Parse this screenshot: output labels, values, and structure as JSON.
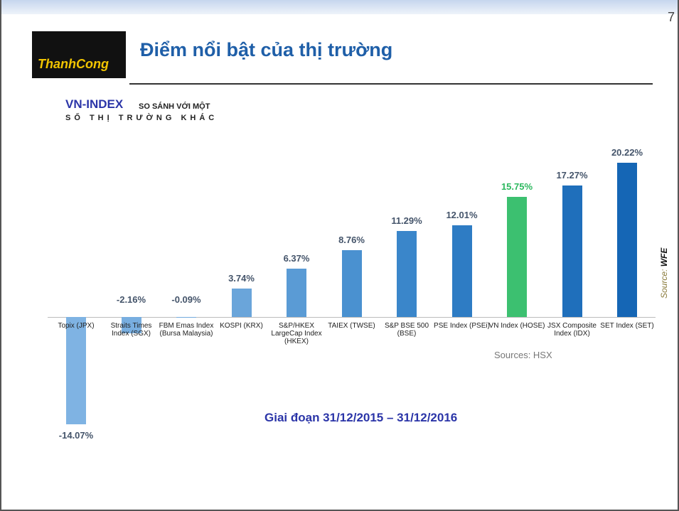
{
  "page_number": "7",
  "logo": "ThanhCong",
  "title": "Điểm nổi bật của thị trường",
  "subtitle_1": "VN-INDEX",
  "subtitle_2": "SO SÁNH VỚI MỘT",
  "subtitle_3": "SỐ THỊ TRƯỜNG KHÁC",
  "chart_data": {
    "type": "bar",
    "categories": [
      "Topix (JPX)",
      "Straits Times Index (SGX)",
      "FBM Emas Index (Bursa Malaysia)",
      "KOSPI (KRX)",
      "S&P/HKEX LargeCap Index (HKEX)",
      "TAIEX (TWSE)",
      "S&P BSE 500 (BSE)",
      "PSE Index (PSEi)",
      "VN Index (HOSE)",
      "JSX Composite Index (IDX)",
      "SET Index (SET)"
    ],
    "values": [
      -14.07,
      -2.16,
      -0.09,
      3.74,
      6.37,
      8.76,
      11.29,
      12.01,
      15.75,
      17.27,
      20.22
    ],
    "value_labels": [
      "-14.07%",
      "-2.16%",
      "-0.09%",
      "3.74%",
      "6.37%",
      "8.76%",
      "11.29%",
      "12.01%",
      "15.75%",
      "17.27%",
      "20.22%"
    ],
    "colors": [
      "#7fb3e3",
      "#78aee0",
      "#72a9dd",
      "#6aa5da",
      "#5a9bd5",
      "#4a91d0",
      "#3a86ca",
      "#2e7cc4",
      "#3cc070",
      "#1f6fbb",
      "#1566b5"
    ],
    "label_colors": [
      "#44546a",
      "#44546a",
      "#44546a",
      "#44546a",
      "#44546a",
      "#44546a",
      "#44546a",
      "#44546a",
      "#2db85f",
      "#44546a",
      "#44546a"
    ],
    "annotation": "Sources: HSX",
    "period": "Giai đoạn 31/12/2015 – 31/12/2016",
    "source_label": "Source:",
    "source_value": "WFE"
  }
}
